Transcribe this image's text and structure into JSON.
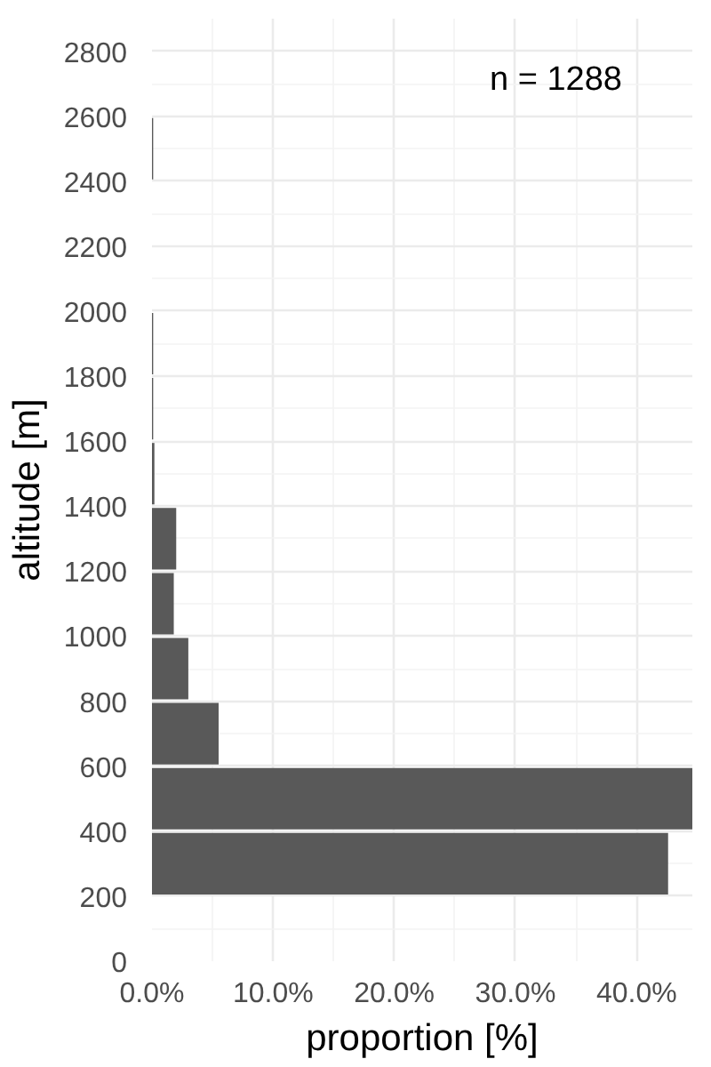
{
  "chart_data": {
    "type": "histogram",
    "orientation": "horizontal",
    "bins": [
      200,
      400,
      600,
      800,
      1000,
      1200,
      1400,
      1600,
      1800,
      2000,
      2200,
      2400,
      2600
    ],
    "values": [
      42.6,
      44.6,
      5.5,
      3.0,
      1.8,
      2.0,
      0.2,
      0.1,
      0.1,
      0,
      0,
      0.1
    ],
    "color": "#595959",
    "xlabel": "proportion [%]",
    "ylabel": "altitude [m]",
    "xlim": [
      0,
      44.6
    ],
    "ylim": [
      0,
      2900
    ],
    "xticks": [
      {
        "value": 0,
        "label": "0.0%"
      },
      {
        "value": 10,
        "label": "10.0%"
      },
      {
        "value": 20,
        "label": "20.0%"
      },
      {
        "value": 30,
        "label": "30.0%"
      },
      {
        "value": 40,
        "label": "40.0%"
      }
    ],
    "yticks": [
      0,
      200,
      400,
      600,
      800,
      1000,
      1200,
      1400,
      1600,
      1800,
      2000,
      2200,
      2400,
      2600,
      2800
    ],
    "grid": true,
    "annotations": [
      "n = 1288"
    ]
  }
}
